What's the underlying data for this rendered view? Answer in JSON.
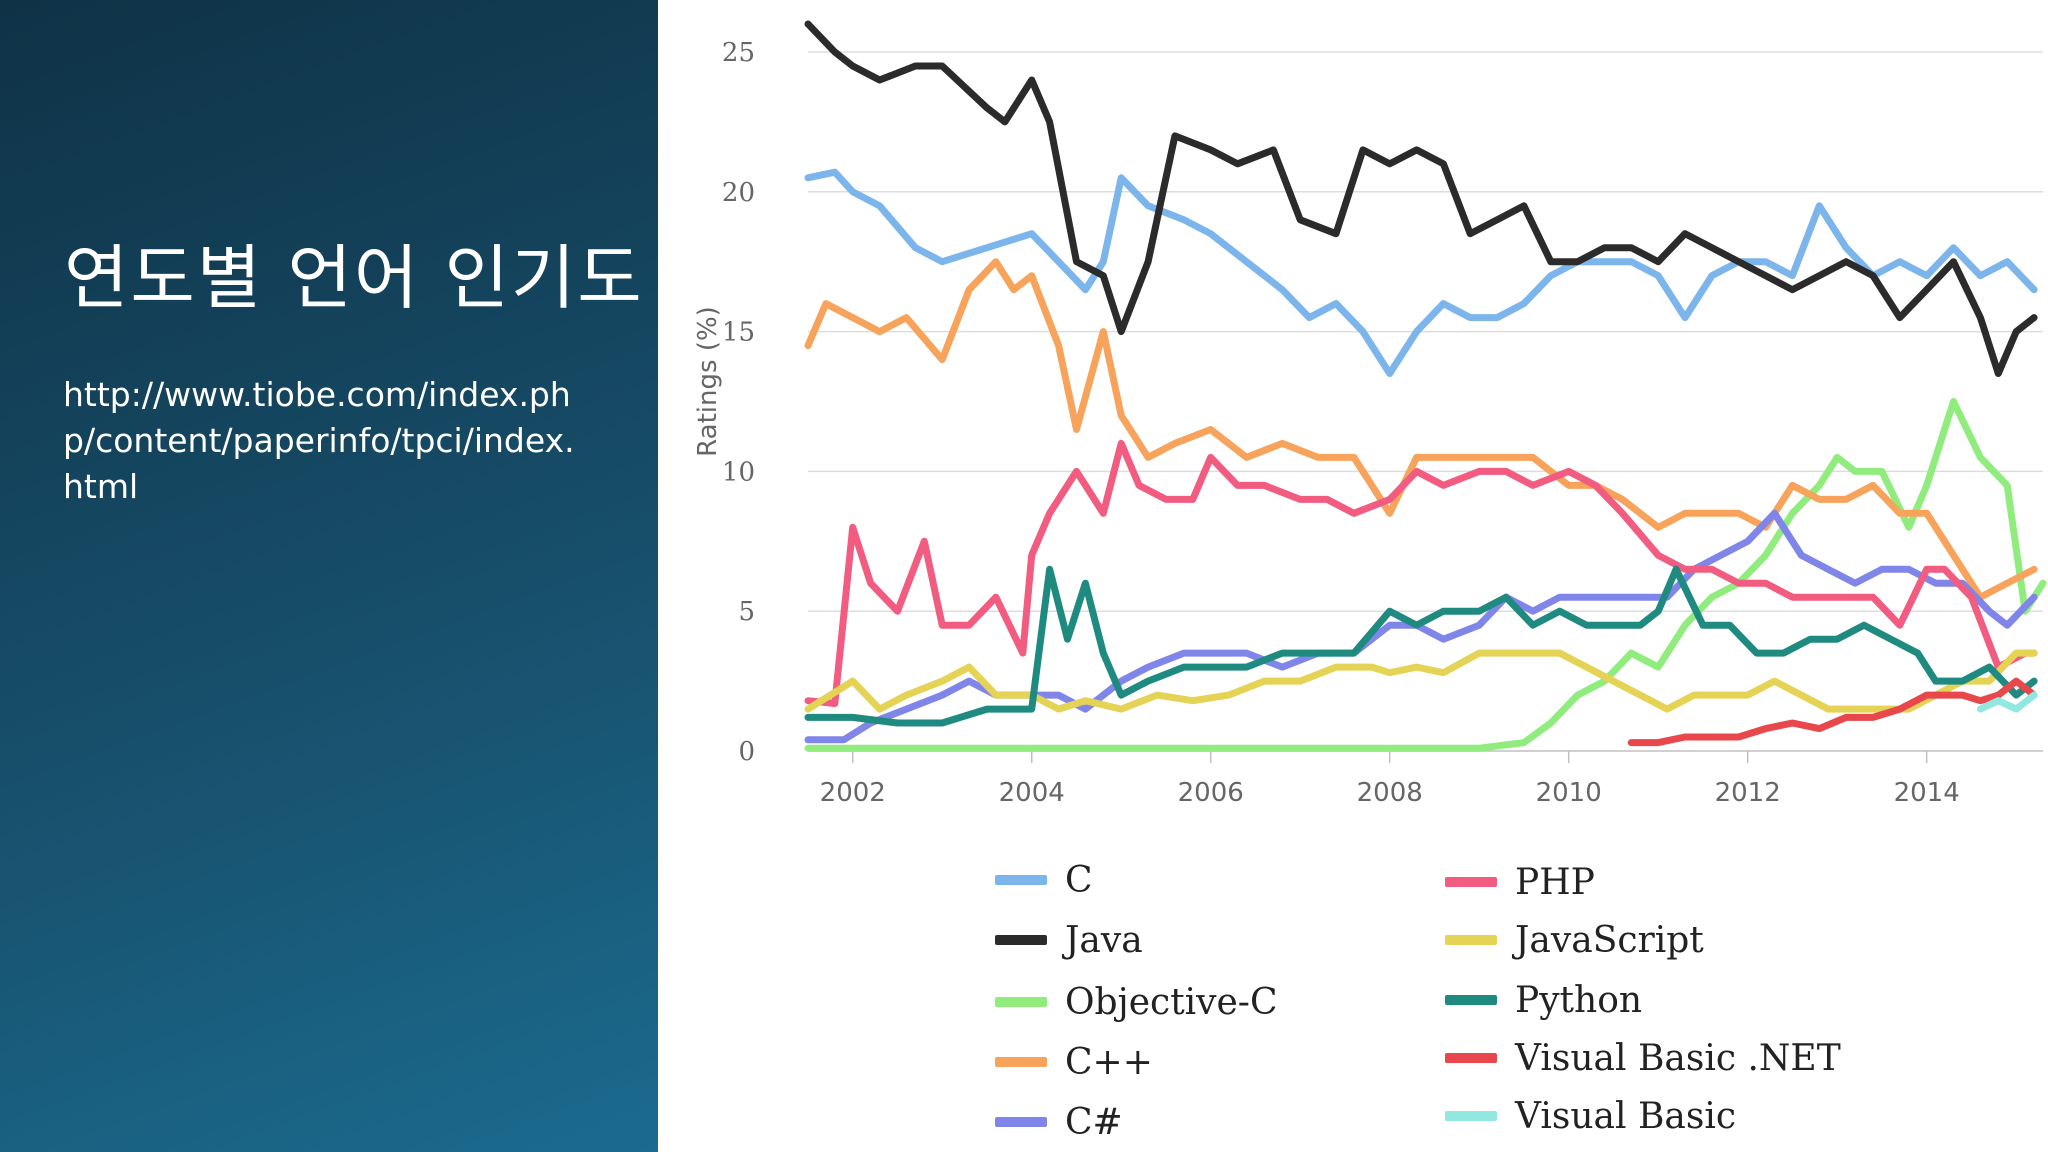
{
  "slide": {
    "title": "연도별 언어 인기도",
    "link": "http://www.tiobe.com/index.php/content/paperinfo/tpci/index.html"
  },
  "chart_data": {
    "type": "line",
    "ylabel": "Ratings (%)",
    "ylim": [
      0,
      25
    ],
    "yticks": [
      "0",
      "5",
      "10",
      "15",
      "20",
      "25"
    ],
    "xticks": [
      "2002",
      "2004",
      "2006",
      "2008",
      "2010",
      "2012",
      "2014"
    ],
    "xlim": [
      2001.5,
      2015.3
    ],
    "grid": true,
    "legend_position": "bottom",
    "series": [
      {
        "name": "C",
        "color": "#7cb5ec",
        "x": [
          2001.5,
          2001.8,
          2002.0,
          2002.3,
          2002.7,
          2003.0,
          2003.5,
          2004.0,
          2004.3,
          2004.6,
          2004.8,
          2005.0,
          2005.3,
          2005.7,
          2006.0,
          2006.4,
          2006.8,
          2007.1,
          2007.4,
          2007.7,
          2008.0,
          2008.3,
          2008.6,
          2008.9,
          2009.2,
          2009.5,
          2009.8,
          2010.1,
          2010.4,
          2010.7,
          2011.0,
          2011.3,
          2011.6,
          2011.9,
          2012.2,
          2012.5,
          2012.8,
          2013.1,
          2013.4,
          2013.7,
          2014.0,
          2014.3,
          2014.6,
          2014.9,
          2015.2
        ],
        "y": [
          20.5,
          20.7,
          20.0,
          19.5,
          18.0,
          17.5,
          18.0,
          18.5,
          17.5,
          16.5,
          17.5,
          20.5,
          19.5,
          19.0,
          18.5,
          17.5,
          16.5,
          15.5,
          16.0,
          15.0,
          13.5,
          15.0,
          16.0,
          15.5,
          15.5,
          16.0,
          17.0,
          17.5,
          17.5,
          17.5,
          17.0,
          15.5,
          17.0,
          17.5,
          17.5,
          17.0,
          19.5,
          18.0,
          17.0,
          17.5,
          17.0,
          18.0,
          17.0,
          17.5,
          16.5
        ]
      },
      {
        "name": "Java",
        "color": "#2b2b2b",
        "x": [
          2001.5,
          2001.8,
          2002.0,
          2002.3,
          2002.7,
          2003.0,
          2003.5,
          2003.7,
          2004.0,
          2004.2,
          2004.5,
          2004.8,
          2005.0,
          2005.3,
          2005.6,
          2006.0,
          2006.3,
          2006.7,
          2007.0,
          2007.4,
          2007.7,
          2008.0,
          2008.3,
          2008.6,
          2008.9,
          2009.2,
          2009.5,
          2009.8,
          2010.1,
          2010.4,
          2010.7,
          2011.0,
          2011.3,
          2011.6,
          2011.9,
          2012.2,
          2012.5,
          2012.8,
          2013.1,
          2013.4,
          2013.7,
          2014.0,
          2014.3,
          2014.6,
          2014.8,
          2015.0,
          2015.2
        ],
        "y": [
          26.0,
          25.0,
          24.5,
          24.0,
          24.5,
          24.5,
          23.0,
          22.5,
          24.0,
          22.5,
          17.5,
          17.0,
          15.0,
          17.5,
          22.0,
          21.5,
          21.0,
          21.5,
          19.0,
          18.5,
          21.5,
          21.0,
          21.5,
          21.0,
          18.5,
          19.0,
          19.5,
          17.5,
          17.5,
          18.0,
          18.0,
          17.5,
          18.5,
          18.0,
          17.5,
          17.0,
          16.5,
          17.0,
          17.5,
          17.0,
          15.5,
          16.5,
          17.5,
          15.5,
          13.5,
          15.0,
          15.5
        ]
      },
      {
        "name": "Objective-C",
        "color": "#90ed7d",
        "x": [
          2001.5,
          2003.0,
          2005.0,
          2007.0,
          2009.0,
          2009.5,
          2009.8,
          2010.1,
          2010.4,
          2010.7,
          2011.0,
          2011.3,
          2011.6,
          2011.9,
          2012.2,
          2012.5,
          2012.8,
          2013.0,
          2013.2,
          2013.5,
          2013.8,
          2014.0,
          2014.3,
          2014.6,
          2014.9,
          2015.1,
          2015.3
        ],
        "y": [
          0.1,
          0.1,
          0.1,
          0.1,
          0.1,
          0.3,
          1.0,
          2.0,
          2.5,
          3.5,
          3.0,
          4.5,
          5.5,
          6.0,
          7.0,
          8.5,
          9.5,
          10.5,
          10.0,
          10.0,
          8.0,
          9.5,
          12.5,
          10.5,
          9.5,
          5.0,
          6.0
        ]
      },
      {
        "name": "C++",
        "color": "#f7a35c",
        "x": [
          2001.5,
          2001.7,
          2002.0,
          2002.3,
          2002.6,
          2003.0,
          2003.3,
          2003.6,
          2003.8,
          2004.0,
          2004.3,
          2004.5,
          2004.8,
          2005.0,
          2005.3,
          2005.6,
          2006.0,
          2006.4,
          2006.8,
          2007.2,
          2007.6,
          2008.0,
          2008.3,
          2008.6,
          2009.0,
          2009.3,
          2009.6,
          2010.0,
          2010.3,
          2010.6,
          2011.0,
          2011.3,
          2011.6,
          2011.9,
          2012.2,
          2012.5,
          2012.8,
          2013.1,
          2013.4,
          2013.7,
          2014.0,
          2014.3,
          2014.6,
          2014.9,
          2015.2
        ],
        "y": [
          14.5,
          16.0,
          15.5,
          15.0,
          15.5,
          14.0,
          16.5,
          17.5,
          16.5,
          17.0,
          14.5,
          11.5,
          15.0,
          12.0,
          10.5,
          11.0,
          11.5,
          10.5,
          11.0,
          10.5,
          10.5,
          8.5,
          10.5,
          10.5,
          10.5,
          10.5,
          10.5,
          9.5,
          9.5,
          9.0,
          8.0,
          8.5,
          8.5,
          8.5,
          8.0,
          9.5,
          9.0,
          9.0,
          9.5,
          8.5,
          8.5,
          7.0,
          5.5,
          6.0,
          6.5
        ]
      },
      {
        "name": "C#",
        "color": "#8085e9",
        "x": [
          2001.5,
          2001.9,
          2002.2,
          2002.6,
          2003.0,
          2003.3,
          2003.6,
          2004.0,
          2004.3,
          2004.6,
          2005.0,
          2005.3,
          2005.7,
          2006.0,
          2006.4,
          2006.8,
          2007.2,
          2007.6,
          2008.0,
          2008.3,
          2008.6,
          2009.0,
          2009.3,
          2009.6,
          2009.9,
          2010.2,
          2010.5,
          2010.8,
          2011.1,
          2011.4,
          2011.7,
          2012.0,
          2012.3,
          2012.6,
          2012.9,
          2013.2,
          2013.5,
          2013.8,
          2014.1,
          2014.4,
          2014.7,
          2014.9,
          2015.2
        ],
        "y": [
          0.4,
          0.4,
          1.0,
          1.5,
          2.0,
          2.5,
          2.0,
          2.0,
          2.0,
          1.5,
          2.5,
          3.0,
          3.5,
          3.5,
          3.5,
          3.0,
          3.5,
          3.5,
          4.5,
          4.5,
          4.0,
          4.5,
          5.5,
          5.0,
          5.5,
          5.5,
          5.5,
          5.5,
          5.5,
          6.5,
          7.0,
          7.5,
          8.5,
          7.0,
          6.5,
          6.0,
          6.5,
          6.5,
          6.0,
          6.0,
          5.0,
          4.5,
          5.5
        ]
      },
      {
        "name": "PHP",
        "color": "#f15c80",
        "x": [
          2001.5,
          2001.8,
          2002.0,
          2002.2,
          2002.5,
          2002.8,
          2003.0,
          2003.3,
          2003.6,
          2003.9,
          2004.0,
          2004.2,
          2004.5,
          2004.8,
          2005.0,
          2005.2,
          2005.5,
          2005.8,
          2006.0,
          2006.3,
          2006.6,
          2007.0,
          2007.3,
          2007.6,
          2008.0,
          2008.3,
          2008.6,
          2009.0,
          2009.3,
          2009.6,
          2010.0,
          2010.3,
          2010.6,
          2011.0,
          2011.3,
          2011.6,
          2011.9,
          2012.2,
          2012.5,
          2012.8,
          2013.1,
          2013.4,
          2013.7,
          2014.0,
          2014.2,
          2014.5,
          2014.8,
          2015.1,
          2015.2
        ],
        "y": [
          1.8,
          1.7,
          8.0,
          6.0,
          5.0,
          7.5,
          4.5,
          4.5,
          5.5,
          3.5,
          7.0,
          8.5,
          10.0,
          8.5,
          11.0,
          9.5,
          9.0,
          9.0,
          10.5,
          9.5,
          9.5,
          9.0,
          9.0,
          8.5,
          9.0,
          10.0,
          9.5,
          10.0,
          10.0,
          9.5,
          10.0,
          9.5,
          8.5,
          7.0,
          6.5,
          6.5,
          6.0,
          6.0,
          5.5,
          5.5,
          5.5,
          5.5,
          4.5,
          6.5,
          6.5,
          5.5,
          3.0,
          3.5,
          3.5
        ]
      },
      {
        "name": "JavaScript",
        "color": "#e4d354",
        "x": [
          2001.5,
          2002.0,
          2002.3,
          2002.6,
          2003.0,
          2003.3,
          2003.6,
          2004.0,
          2004.3,
          2004.6,
          2005.0,
          2005.4,
          2005.8,
          2006.2,
          2006.6,
          2007.0,
          2007.4,
          2007.8,
          2008.0,
          2008.3,
          2008.6,
          2009.0,
          2009.3,
          2009.6,
          2009.9,
          2010.2,
          2010.5,
          2010.8,
          2011.1,
          2011.4,
          2011.7,
          2012.0,
          2012.3,
          2012.6,
          2012.9,
          2013.2,
          2013.5,
          2013.8,
          2014.1,
          2014.4,
          2014.7,
          2015.0,
          2015.2
        ],
        "y": [
          1.5,
          2.5,
          1.5,
          2.0,
          2.5,
          3.0,
          2.0,
          2.0,
          1.5,
          1.8,
          1.5,
          2.0,
          1.8,
          2.0,
          2.5,
          2.5,
          3.0,
          3.0,
          2.8,
          3.0,
          2.8,
          3.5,
          3.5,
          3.5,
          3.5,
          3.0,
          2.5,
          2.0,
          1.5,
          2.0,
          2.0,
          2.0,
          2.5,
          2.0,
          1.5,
          1.5,
          1.5,
          1.5,
          2.0,
          2.5,
          2.5,
          3.5,
          3.5
        ]
      },
      {
        "name": "Python",
        "color": "#1f8a80",
        "x": [
          2001.5,
          2002.0,
          2002.5,
          2003.0,
          2003.5,
          2004.0,
          2004.2,
          2004.4,
          2004.6,
          2004.8,
          2005.0,
          2005.3,
          2005.7,
          2006.0,
          2006.4,
          2006.8,
          2007.2,
          2007.6,
          2008.0,
          2008.3,
          2008.6,
          2009.0,
          2009.3,
          2009.6,
          2009.9,
          2010.2,
          2010.5,
          2010.8,
          2011.0,
          2011.2,
          2011.5,
          2011.8,
          2012.1,
          2012.4,
          2012.7,
          2013.0,
          2013.3,
          2013.6,
          2013.9,
          2014.1,
          2014.4,
          2014.7,
          2015.0,
          2015.2
        ],
        "y": [
          1.2,
          1.2,
          1.0,
          1.0,
          1.5,
          1.5,
          6.5,
          4.0,
          6.0,
          3.5,
          2.0,
          2.5,
          3.0,
          3.0,
          3.0,
          3.5,
          3.5,
          3.5,
          5.0,
          4.5,
          5.0,
          5.0,
          5.5,
          4.5,
          5.0,
          4.5,
          4.5,
          4.5,
          5.0,
          6.5,
          4.5,
          4.5,
          3.5,
          3.5,
          4.0,
          4.0,
          4.5,
          4.0,
          3.5,
          2.5,
          2.5,
          3.0,
          2.0,
          2.5
        ]
      },
      {
        "name": "Visual Basic .NET",
        "color": "#e8474c",
        "x": [
          2010.7,
          2011.0,
          2011.3,
          2011.6,
          2011.9,
          2012.2,
          2012.5,
          2012.8,
          2013.1,
          2013.4,
          2013.7,
          2014.0,
          2014.2,
          2014.4,
          2014.6,
          2014.8,
          2015.0,
          2015.2
        ],
        "y": [
          0.3,
          0.3,
          0.5,
          0.5,
          0.5,
          0.8,
          1.0,
          0.8,
          1.2,
          1.2,
          1.5,
          2.0,
          2.0,
          2.0,
          1.8,
          2.0,
          2.5,
          2.0
        ]
      },
      {
        "name": "Visual Basic",
        "color": "#91e8e1",
        "x": [
          2014.6,
          2014.8,
          2015.0,
          2015.2
        ],
        "y": [
          1.5,
          1.8,
          1.5,
          2.0
        ]
      }
    ]
  }
}
